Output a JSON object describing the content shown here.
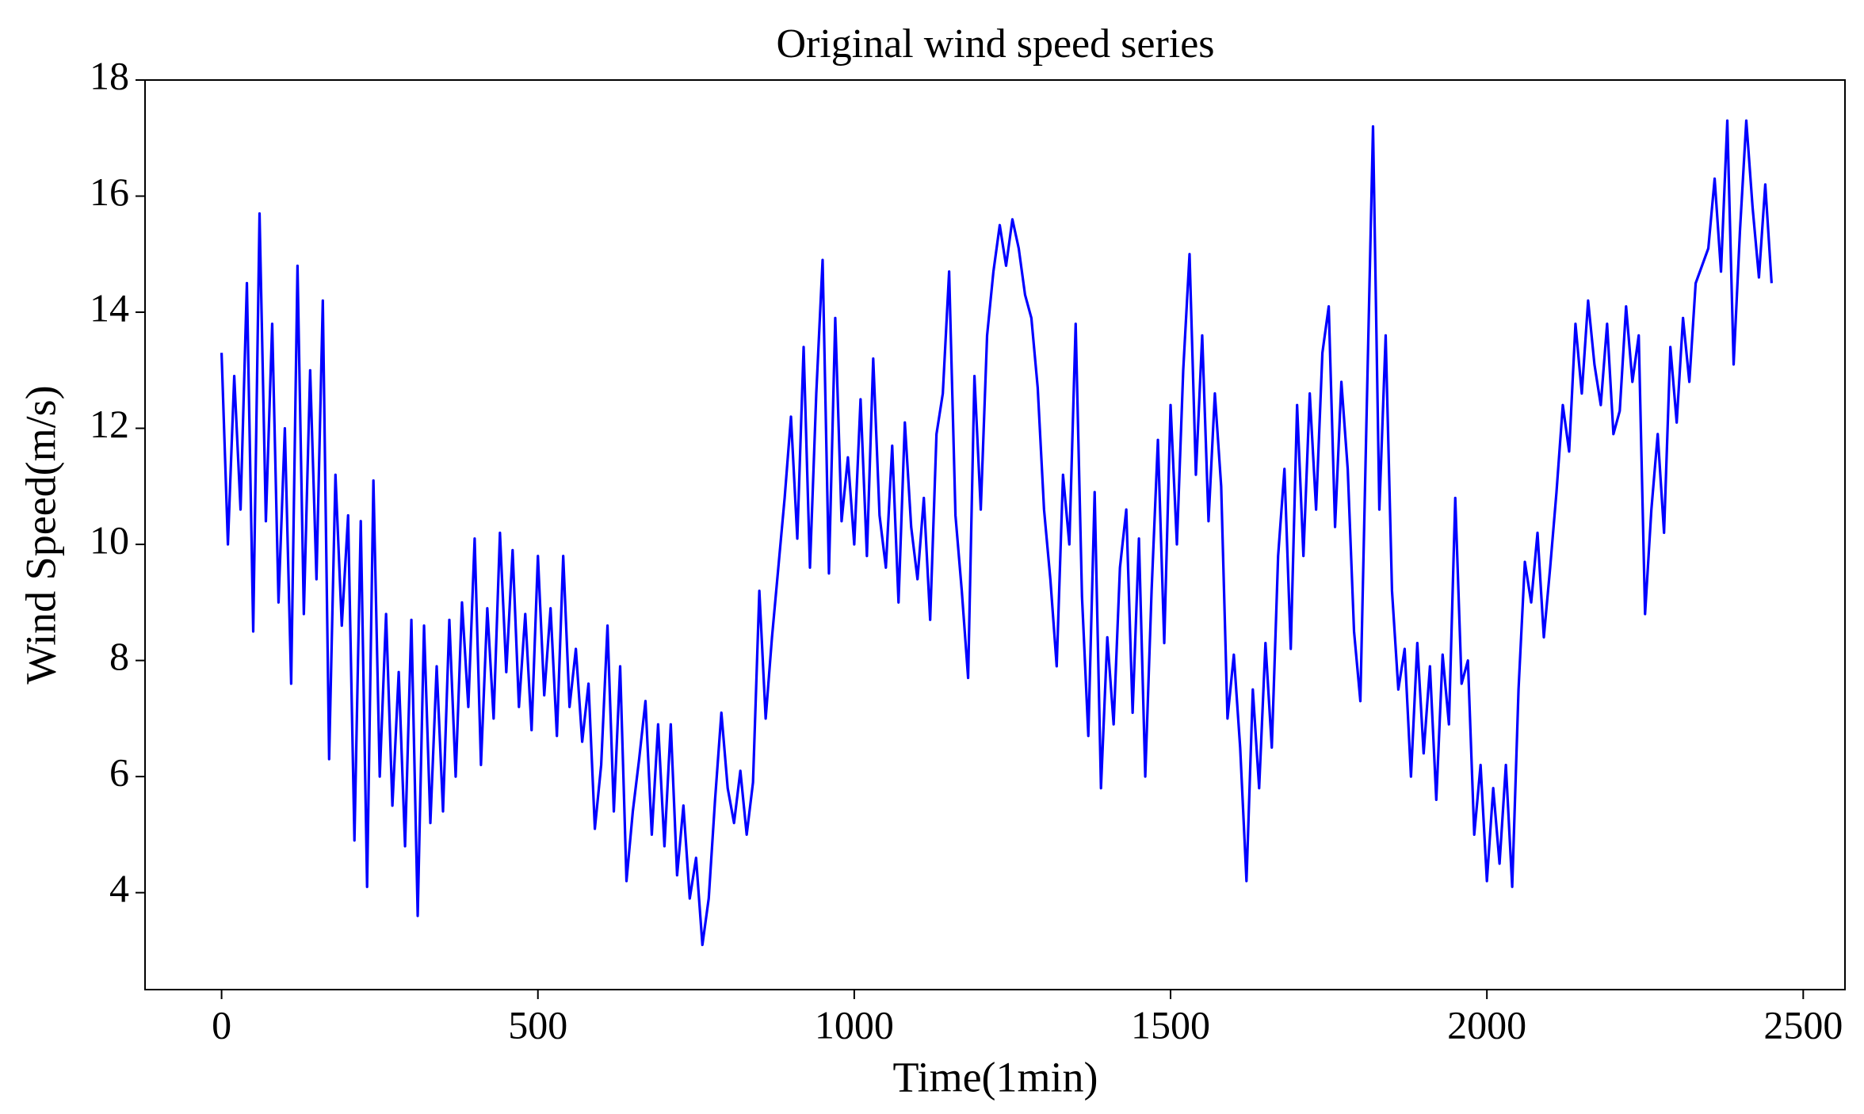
{
  "chart_data": {
    "type": "line",
    "title": "Original wind speed series",
    "x_label": "Time(1min)",
    "y_label": "Wind Speed(m/s)",
    "color": "#0000ff",
    "xlim": [
      -121,
      2566
    ],
    "ylim": [
      2.33,
      18
    ],
    "xticks": [
      0,
      500,
      1000,
      1500,
      2000,
      2500
    ],
    "yticks": [
      4,
      6,
      8,
      10,
      12,
      14,
      16,
      18
    ],
    "x": [
      0,
      10,
      20,
      30,
      40,
      50,
      60,
      70,
      80,
      90,
      100,
      110,
      120,
      130,
      140,
      150,
      160,
      170,
      180,
      190,
      200,
      210,
      220,
      230,
      240,
      250,
      260,
      270,
      280,
      290,
      300,
      310,
      320,
      330,
      340,
      350,
      360,
      370,
      380,
      390,
      400,
      410,
      420,
      430,
      440,
      450,
      460,
      470,
      480,
      490,
      500,
      510,
      520,
      530,
      540,
      550,
      560,
      570,
      580,
      590,
      600,
      610,
      620,
      630,
      640,
      650,
      660,
      670,
      680,
      690,
      700,
      710,
      720,
      730,
      740,
      750,
      760,
      770,
      780,
      790,
      800,
      810,
      820,
      830,
      840,
      850,
      860,
      870,
      880,
      890,
      900,
      910,
      920,
      930,
      940,
      950,
      960,
      970,
      980,
      990,
      1000,
      1010,
      1020,
      1030,
      1040,
      1050,
      1060,
      1070,
      1080,
      1090,
      1100,
      1110,
      1120,
      1130,
      1140,
      1150,
      1160,
      1170,
      1180,
      1190,
      1200,
      1210,
      1220,
      1230,
      1240,
      1250,
      1260,
      1270,
      1280,
      1290,
      1300,
      1310,
      1320,
      1330,
      1340,
      1350,
      1360,
      1370,
      1380,
      1390,
      1400,
      1410,
      1420,
      1430,
      1440,
      1450,
      1460,
      1470,
      1480,
      1490,
      1500,
      1510,
      1520,
      1530,
      1540,
      1550,
      1560,
      1570,
      1580,
      1590,
      1600,
      1610,
      1620,
      1630,
      1640,
      1650,
      1660,
      1670,
      1680,
      1690,
      1700,
      1710,
      1720,
      1730,
      1740,
      1750,
      1760,
      1770,
      1780,
      1790,
      1800,
      1810,
      1820,
      1830,
      1840,
      1850,
      1860,
      1870,
      1880,
      1890,
      1900,
      1910,
      1920,
      1930,
      1940,
      1950,
      1960,
      1970,
      1980,
      1990,
      2000,
      2010,
      2020,
      2030,
      2040,
      2050,
      2060,
      2070,
      2080,
      2090,
      2100,
      2110,
      2120,
      2130,
      2140,
      2150,
      2160,
      2170,
      2180,
      2190,
      2200,
      2210,
      2220,
      2230,
      2240,
      2250,
      2260,
      2270,
      2280,
      2290,
      2300,
      2310,
      2320,
      2330,
      2340,
      2350,
      2360,
      2370,
      2380,
      2390,
      2400,
      2410,
      2420,
      2430,
      2440,
      2450
    ],
    "values": [
      13.3,
      10.0,
      12.9,
      10.6,
      14.5,
      8.5,
      15.7,
      10.4,
      13.8,
      9.0,
      12.0,
      7.6,
      14.8,
      8.8,
      13.0,
      9.4,
      14.2,
      6.3,
      11.2,
      8.6,
      10.5,
      4.9,
      10.4,
      4.1,
      11.1,
      6.0,
      8.8,
      5.5,
      7.8,
      4.8,
      8.7,
      3.6,
      8.6,
      5.2,
      7.9,
      5.4,
      8.7,
      6.0,
      9.0,
      7.2,
      10.1,
      6.2,
      8.9,
      7.0,
      10.2,
      7.8,
      9.9,
      7.2,
      8.8,
      6.8,
      9.8,
      7.4,
      8.9,
      6.7,
      9.8,
      7.2,
      8.2,
      6.6,
      7.6,
      5.1,
      6.2,
      8.6,
      5.4,
      7.9,
      4.2,
      5.4,
      6.3,
      7.3,
      5.0,
      6.9,
      4.8,
      6.9,
      4.3,
      5.5,
      3.9,
      4.6,
      3.1,
      3.9,
      5.6,
      7.1,
      5.8,
      5.2,
      6.1,
      5.0,
      5.9,
      9.2,
      7.0,
      8.4,
      9.6,
      10.8,
      12.2,
      10.1,
      13.4,
      9.6,
      12.6,
      14.9,
      9.5,
      13.9,
      10.4,
      11.5,
      10.0,
      12.5,
      9.8,
      13.2,
      10.5,
      9.6,
      11.7,
      9.0,
      12.1,
      10.3,
      9.4,
      10.8,
      8.7,
      11.9,
      12.6,
      14.7,
      10.5,
      9.2,
      7.7,
      12.9,
      10.6,
      13.6,
      14.7,
      15.5,
      14.8,
      15.6,
      15.1,
      14.3,
      13.9,
      12.7,
      10.6,
      9.4,
      7.9,
      11.2,
      10.0,
      13.8,
      9.1,
      6.7,
      10.9,
      5.8,
      8.4,
      6.9,
      9.6,
      10.6,
      7.1,
      10.1,
      6.0,
      9.2,
      11.8,
      8.3,
      12.4,
      10.0,
      13.0,
      15.0,
      11.2,
      13.6,
      10.4,
      12.6,
      11.0,
      7.0,
      8.1,
      6.5,
      4.2,
      7.5,
      5.8,
      8.3,
      6.5,
      9.8,
      11.3,
      8.2,
      12.4,
      9.8,
      12.6,
      10.6,
      13.3,
      14.1,
      10.3,
      12.8,
      11.3,
      8.5,
      7.3,
      12.3,
      17.2,
      10.6,
      13.6,
      9.2,
      7.5,
      8.2,
      6.0,
      8.3,
      6.4,
      7.9,
      5.6,
      8.1,
      6.9,
      10.8,
      7.6,
      8.0,
      5.0,
      6.2,
      4.2,
      5.8,
      4.5,
      6.2,
      4.1,
      7.5,
      9.7,
      9.0,
      10.2,
      8.4,
      9.6,
      10.9,
      12.4,
      11.6,
      13.8,
      12.6,
      14.2,
      13.1,
      12.4,
      13.8,
      11.9,
      12.3,
      14.1,
      12.8,
      13.6,
      8.8,
      10.6,
      11.9,
      10.2,
      13.4,
      12.1,
      13.9,
      12.8,
      14.5,
      14.8,
      15.1,
      16.3,
      14.7,
      17.3,
      13.1,
      15.4,
      17.3,
      15.8,
      14.6,
      16.2,
      14.5
    ]
  }
}
